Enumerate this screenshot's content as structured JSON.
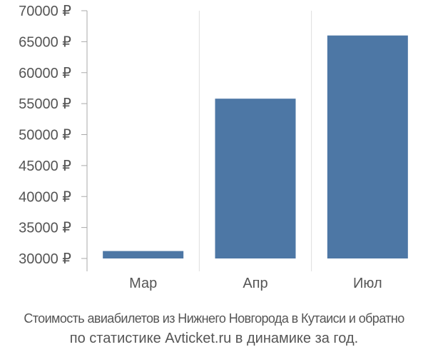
{
  "chart_data": {
    "type": "bar",
    "categories": [
      "Мар",
      "Апр",
      "Июл"
    ],
    "values": [
      31200,
      55800,
      66000
    ],
    "ylim": [
      30000,
      70000
    ],
    "yticks": [
      30000,
      35000,
      40000,
      45000,
      50000,
      55000,
      60000,
      65000,
      70000
    ],
    "ytick_labels": [
      "30000 ₽",
      "35000 ₽",
      "40000 ₽",
      "45000 ₽",
      "50000 ₽",
      "55000 ₽",
      "60000 ₽",
      "65000 ₽",
      "70000 ₽"
    ],
    "grid": "vertical separators between categories",
    "bar_color": "#4d77a5"
  },
  "caption": {
    "line1": "Стоимость авиабилетов из Нижнего Новгорода в Кутаиси и обратно",
    "line2": "по статистике Avticket.ru в динамике за год."
  }
}
